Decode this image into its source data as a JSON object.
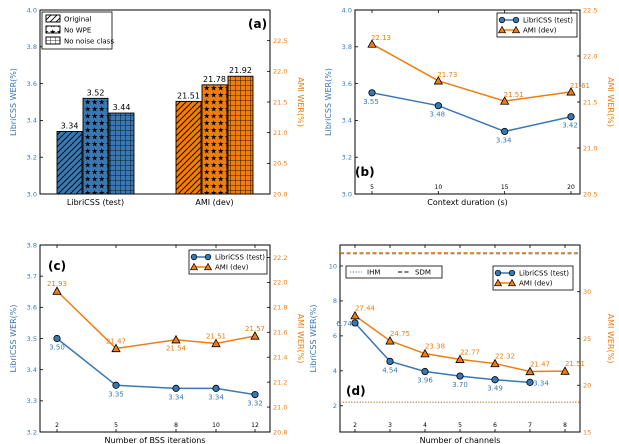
{
  "colors": {
    "blue": "#3a78b4",
    "orange": "#ee7d12",
    "black": "#000000"
  },
  "chart_data": [
    {
      "panel": "(a)",
      "type": "bar",
      "categories": [
        "LibriCSS (test)",
        "AMI (dev)"
      ],
      "ylabel_left": "LibriCSS WER(%)",
      "ylabel_right": "AMI WER(%)",
      "ylim_left": [
        3.0,
        4.0
      ],
      "ylim_right": [
        20.0,
        23.0
      ],
      "yticks_left": [
        "3.0",
        "3.2",
        "3.4",
        "3.6",
        "3.8",
        "4.0"
      ],
      "yticks_right": [
        "20.0",
        "20.5",
        "21.0",
        "21.5",
        "22.0",
        "22.5"
      ],
      "legend_position": "top-left",
      "series": [
        {
          "name": "Original",
          "pattern": "hatch",
          "values": [
            3.34,
            21.51
          ],
          "labels": [
            "3.34",
            "21.51"
          ]
        },
        {
          "name": "No WPE",
          "pattern": "stars",
          "values": [
            3.52,
            21.78
          ],
          "labels": [
            "3.52",
            "21.78"
          ]
        },
        {
          "name": "No noise class",
          "pattern": "grid",
          "values": [
            3.44,
            21.92
          ],
          "labels": [
            "3.44",
            "21.92"
          ]
        }
      ]
    },
    {
      "panel": "(b)",
      "type": "line",
      "xlabel": "Context duration (s)",
      "ylabel_left": "LibriCSS WER(%)",
      "ylabel_right": "AMI WER(%)",
      "x": [
        5,
        10,
        15,
        20
      ],
      "xticks": [
        "5",
        "10",
        "15",
        "20"
      ],
      "ylim_left": [
        3.0,
        4.0
      ],
      "ylim_right": [
        20.5,
        22.5
      ],
      "yticks_left": [
        "3.0",
        "3.2",
        "3.4",
        "3.6",
        "3.8",
        "4.0"
      ],
      "yticks_right": [
        "20.5",
        "21.0",
        "21.5",
        "22.0",
        "22.5"
      ],
      "legend_position": "top-right",
      "series": [
        {
          "name": "LibriCSS (test)",
          "axis": "left",
          "values": [
            3.55,
            3.48,
            3.34,
            3.42
          ],
          "labels": [
            "3.55",
            "3.48",
            "3.34",
            "3.42"
          ]
        },
        {
          "name": "AMI (dev)",
          "axis": "right",
          "values": [
            22.13,
            21.73,
            21.51,
            21.61
          ],
          "labels": [
            "22.13",
            "21.73",
            "21.51",
            "21.61"
          ]
        }
      ]
    },
    {
      "panel": "(c)",
      "type": "line",
      "xlabel": "Number of BSS iterations",
      "ylabel_left": "LibriCSS WER(%)",
      "ylabel_right": "AMI WER(%)",
      "x": [
        2,
        5,
        8,
        10,
        12
      ],
      "xticks": [
        "2",
        "5",
        "8",
        "10",
        "12"
      ],
      "ylim_left": [
        3.2,
        3.8
      ],
      "ylim_right": [
        20.8,
        22.3
      ],
      "yticks_left": [
        "3.2",
        "3.3",
        "3.4",
        "3.5",
        "3.6",
        "3.7",
        "3.8"
      ],
      "yticks_right": [
        "20.8",
        "21.0",
        "21.2",
        "21.4",
        "21.6",
        "21.8",
        "22.0",
        "22.2"
      ],
      "legend_position": "top-right",
      "series": [
        {
          "name": "LibriCSS (test)",
          "axis": "left",
          "values": [
            3.5,
            3.35,
            3.34,
            3.34,
            3.32
          ],
          "labels": [
            "3.50",
            "3.35",
            "3.34",
            "3.34",
            "3.32"
          ]
        },
        {
          "name": "AMI (dev)",
          "axis": "right",
          "values": [
            21.93,
            21.47,
            21.54,
            21.51,
            21.57
          ],
          "labels": [
            "21.93",
            "21.47",
            "21.54",
            "21.51",
            "21.57"
          ]
        }
      ]
    },
    {
      "panel": "(d)",
      "type": "line",
      "xlabel": "Number of channels",
      "ylabel_left": "LibriCSS WER(%)",
      "ylabel_right": "AMI WER(%)",
      "x": [
        2,
        3,
        4,
        5,
        6,
        7,
        8
      ],
      "xticks": [
        "2",
        "3",
        "4",
        "5",
        "6",
        "7",
        "8"
      ],
      "ylim_left": [
        0.5,
        11.2
      ],
      "ylim_right": [
        15,
        35
      ],
      "yticks_left": [
        "2",
        "4",
        "6",
        "8",
        "10"
      ],
      "yticks_right": [
        "15",
        "20",
        "25",
        "30"
      ],
      "legend_position": "top",
      "reference_legend": [
        "IHM",
        "SDM"
      ],
      "reference_lines": [
        {
          "name": "IHM",
          "axis": "left",
          "value": 2.2,
          "color": "#3a78b4",
          "style": "dotted"
        },
        {
          "name": "SDM",
          "axis": "left",
          "value": 10.7,
          "color": "#3a78b4",
          "style": "dashed"
        },
        {
          "name": "IHM",
          "axis": "right",
          "value": 18.2,
          "color": "#ee7d12",
          "style": "dotted"
        },
        {
          "name": "SDM",
          "axis": "right",
          "value": 34.2,
          "color": "#ee7d12",
          "style": "dashed"
        }
      ],
      "series": [
        {
          "name": "LibriCSS (test)",
          "axis": "left",
          "x": [
            2,
            3,
            4,
            5,
            6,
            7
          ],
          "values": [
            6.74,
            4.54,
            3.96,
            3.7,
            3.49,
            3.34
          ],
          "labels": [
            "6.74",
            "4.54",
            "3.96",
            "3.70",
            "3.49",
            "3.34"
          ]
        },
        {
          "name": "AMI (dev)",
          "axis": "right",
          "x": [
            2,
            3,
            4,
            5,
            6,
            7,
            8
          ],
          "values": [
            27.44,
            24.75,
            23.38,
            22.77,
            22.32,
            21.47,
            21.51
          ],
          "labels": [
            "27.44",
            "24.75",
            "23.38",
            "22.77",
            "22.32",
            "21.47",
            "21.51"
          ]
        }
      ]
    }
  ]
}
